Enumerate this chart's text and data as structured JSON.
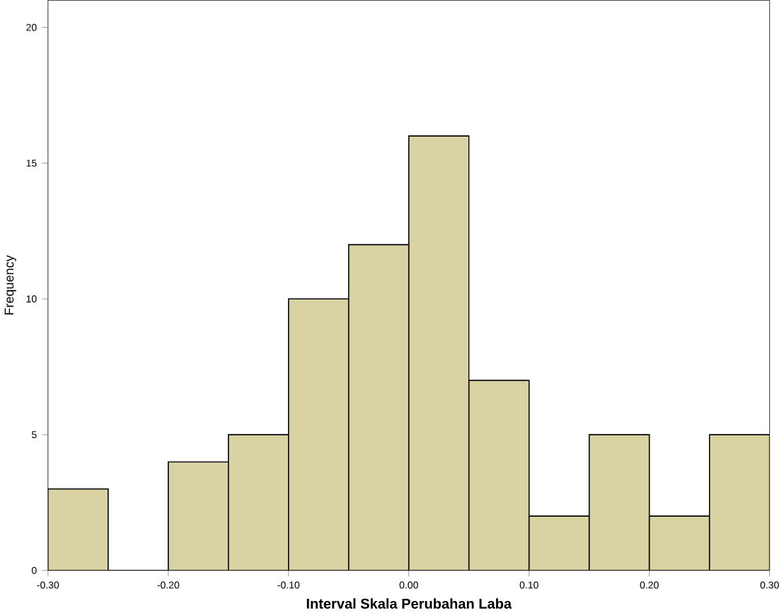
{
  "chart_data": {
    "type": "histogram",
    "xlabel": "Interval Skala Perubahan Laba",
    "ylabel": "Frequency",
    "color": "#d9d2a3",
    "bins": [
      -0.3,
      -0.25,
      -0.2,
      -0.15,
      -0.1,
      -0.05,
      0.0,
      0.05,
      0.1,
      0.15,
      0.2,
      0.25,
      0.3
    ],
    "values": [
      3,
      0,
      4,
      5,
      10,
      12,
      16,
      7,
      2,
      5,
      2,
      5
    ],
    "xlim": [
      -0.3,
      0.3
    ],
    "ylim": [
      0,
      21
    ],
    "xticks": [
      {
        "value": -0.3,
        "label": "-0.30"
      },
      {
        "value": -0.2,
        "label": "-0.20"
      },
      {
        "value": -0.1,
        "label": "-0.10"
      },
      {
        "value": 0.0,
        "label": "0.00"
      },
      {
        "value": 0.1,
        "label": "0.10"
      },
      {
        "value": 0.2,
        "label": "0.20"
      },
      {
        "value": 0.3,
        "label": "0.30"
      }
    ],
    "yticks": [
      0,
      5,
      10,
      15,
      20
    ]
  }
}
